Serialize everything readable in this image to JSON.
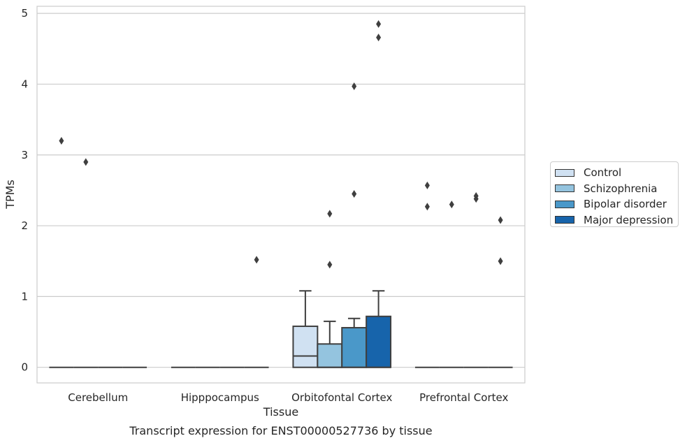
{
  "chart_data": {
    "type": "box",
    "title": "Transcript expression for ENST00000527736 by tissue",
    "xlabel": "Tissue",
    "ylabel": "TPMs",
    "ylim": [
      -0.22,
      5.1
    ],
    "yticks": [
      0,
      1,
      2,
      3,
      4,
      5
    ],
    "grid": true,
    "legend_position": "right",
    "categories": [
      "Cerebellum",
      "Hipppocampus",
      "Orbitofontal Cortex",
      "Prefrontal Cortex"
    ],
    "series": [
      {
        "name": "Control",
        "color": "#d0e1f2",
        "boxes": [
          {
            "whislo": 0,
            "q1": 0,
            "med": 0,
            "q3": 0,
            "whishi": 0,
            "fliers": [
              3.2
            ]
          },
          {
            "whislo": 0,
            "q1": 0,
            "med": 0,
            "q3": 0,
            "whishi": 0,
            "fliers": []
          },
          {
            "whislo": 0,
            "q1": 0,
            "med": 0.16,
            "q3": 0.58,
            "whishi": 1.08,
            "fliers": []
          },
          {
            "whislo": 0,
            "q1": 0,
            "med": 0,
            "q3": 0,
            "whishi": 0,
            "fliers": [
              2.57,
              2.27
            ]
          }
        ]
      },
      {
        "name": "Schizophrenia",
        "color": "#94c4df",
        "boxes": [
          {
            "whislo": 0,
            "q1": 0,
            "med": 0,
            "q3": 0,
            "whishi": 0,
            "fliers": [
              2.9
            ]
          },
          {
            "whislo": 0,
            "q1": 0,
            "med": 0,
            "q3": 0,
            "whishi": 0,
            "fliers": []
          },
          {
            "whislo": 0,
            "q1": 0,
            "med": 0,
            "q3": 0.33,
            "whishi": 0.65,
            "fliers": [
              1.45,
              2.17
            ]
          },
          {
            "whislo": 0,
            "q1": 0,
            "med": 0,
            "q3": 0,
            "whishi": 0,
            "fliers": [
              2.3
            ]
          }
        ]
      },
      {
        "name": "Bipolar disorder",
        "color": "#4a98c9",
        "boxes": [
          {
            "whislo": 0,
            "q1": 0,
            "med": 0,
            "q3": 0,
            "whishi": 0,
            "fliers": []
          },
          {
            "whislo": 0,
            "q1": 0,
            "med": 0,
            "q3": 0,
            "whishi": 0,
            "fliers": []
          },
          {
            "whislo": 0,
            "q1": 0,
            "med": 0,
            "q3": 0.56,
            "whishi": 0.69,
            "fliers": [
              2.45,
              3.97
            ]
          },
          {
            "whislo": 0,
            "q1": 0,
            "med": 0,
            "q3": 0,
            "whishi": 0,
            "fliers": [
              2.38,
              2.42
            ]
          }
        ]
      },
      {
        "name": "Major depression",
        "color": "#1764ab",
        "boxes": [
          {
            "whislo": 0,
            "q1": 0,
            "med": 0,
            "q3": 0,
            "whishi": 0,
            "fliers": []
          },
          {
            "whislo": 0,
            "q1": 0,
            "med": 0,
            "q3": 0,
            "whishi": 0,
            "fliers": [
              1.52
            ]
          },
          {
            "whislo": 0,
            "q1": 0,
            "med": 0,
            "q3": 0.72,
            "whishi": 1.08,
            "fliers": [
              4.66,
              4.85
            ]
          },
          {
            "whislo": 0,
            "q1": 0,
            "med": 0,
            "q3": 0,
            "whishi": 0,
            "fliers": [
              2.08,
              1.5
            ]
          }
        ]
      }
    ]
  }
}
